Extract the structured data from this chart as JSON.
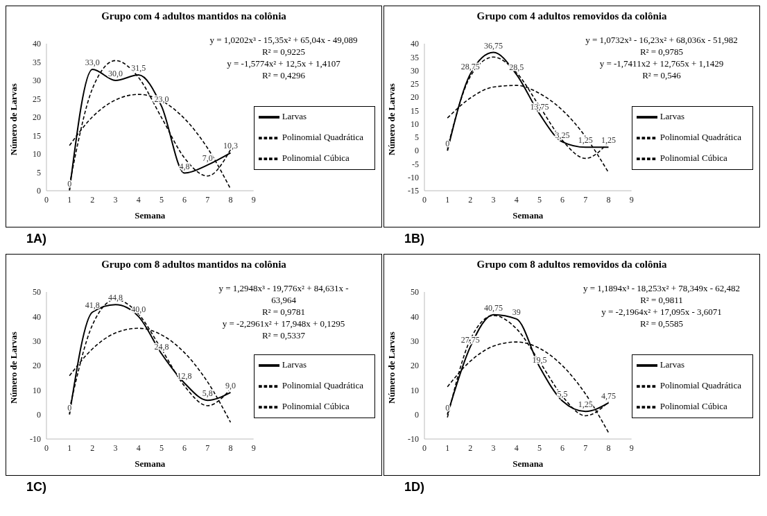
{
  "chart_data": [
    {
      "type": "line",
      "title": "Grupo com 4 adultos mantidos na colônia",
      "xlabel": "Semana",
      "ylabel": "Número de Larvas",
      "x": [
        1,
        2,
        3,
        4,
        5,
        6,
        7,
        8
      ],
      "xlim": [
        0,
        9
      ],
      "xticks": [
        0,
        1,
        2,
        3,
        4,
        5,
        6,
        7,
        8,
        9
      ],
      "ylim": [
        0,
        40
      ],
      "yticks": [
        0,
        5,
        10,
        15,
        20,
        25,
        30,
        35,
        40
      ],
      "legend": "right",
      "grid": false,
      "marker": "none",
      "series": [
        {
          "name": "Larvas",
          "color": "#000000",
          "line_style": "solid",
          "values": [
            0,
            33.0,
            30.0,
            31.5,
            23.0,
            4.8,
            7.0,
            10.3
          ],
          "value_labels": [
            "0",
            "33,0",
            "30,0",
            "31,5",
            "23,0",
            "4,8",
            "7,0",
            "10,3"
          ]
        },
        {
          "name": "Polinomial Quadrática",
          "color": "#000000",
          "line_style": "dashed",
          "values": [
            12.3,
            20.1,
            24.7,
            26.2,
            24.5,
            19.6,
            11.6,
            0.5
          ]
        },
        {
          "name": "Polinomial Cúbica",
          "color": "#000000",
          "line_style": "dashed",
          "values": [
            1.6,
            27.8,
            35.4,
            30.8,
            19.9,
            8.9,
            4.0,
            11.2
          ]
        }
      ],
      "annotations": [
        "y = 1,0202x³  - 15,35x² + 65,04x  - 49,089",
        "R² = 0,9225",
        "y = -1,5774x² + 12,5x + 1,4107",
        "R² = 0,4296",
        "1A)"
      ]
    },
    {
      "type": "line",
      "title": "Grupo com 4 adultos removidos da colônia",
      "xlabel": "Semana",
      "ylabel": "Número de Larvas",
      "x": [
        1,
        2,
        3,
        4,
        5,
        6,
        7,
        8
      ],
      "xlim": [
        0,
        9
      ],
      "xticks": [
        0,
        1,
        2,
        3,
        4,
        5,
        6,
        7,
        8,
        9
      ],
      "ylim": [
        -15,
        40
      ],
      "yticks": [
        -15,
        -10,
        -5,
        0,
        5,
        10,
        15,
        20,
        25,
        30,
        35,
        40
      ],
      "legend": "right",
      "grid": false,
      "marker": "none",
      "series": [
        {
          "name": "Larvas",
          "color": "#000000",
          "line_style": "solid",
          "values": [
            0,
            28.75,
            36.75,
            28.5,
            13.75,
            3.25,
            1.25,
            1.25
          ],
          "value_labels": [
            "0",
            "28,75",
            "36,75",
            "28,5",
            "13,75",
            "3,25",
            "1,25",
            "1,25"
          ]
        },
        {
          "name": "Polinomial Quadrática",
          "color": "#000000",
          "line_style": "dashed",
          "values": [
            12.2,
            19.7,
            23.8,
            24.4,
            21.4,
            15.1,
            5.2,
            -8.2
          ]
        },
        {
          "name": "Polinomial Cúbica",
          "color": "#000000",
          "line_style": "dashed",
          "values": [
            0.9,
            27.8,
            35.0,
            29.2,
            16.6,
            3.8,
            -2.9,
            3.1
          ]
        }
      ],
      "annotations": [
        "y = 1,0732x³  - 16,23x² + 68,036x - 51,982",
        "R² = 0,9785",
        "y = -1,7411x2 + 12,765x + 1,1429",
        "R² = 0,546",
        "1B)"
      ]
    },
    {
      "type": "line",
      "title": "Grupo com 8 adultos mantidos na colônia",
      "xlabel": "Semana",
      "ylabel": "Número de Larvas",
      "x": [
        1,
        2,
        3,
        4,
        5,
        6,
        7,
        8
      ],
      "xlim": [
        0,
        9
      ],
      "xticks": [
        0,
        1,
        2,
        3,
        4,
        5,
        6,
        7,
        8,
        9
      ],
      "ylim": [
        -10,
        50
      ],
      "yticks": [
        -10,
        0,
        10,
        20,
        30,
        40,
        50
      ],
      "legend": "right",
      "grid": false,
      "marker": "none",
      "series": [
        {
          "name": "Larvas",
          "color": "#000000",
          "line_style": "solid",
          "values": [
            0,
            41.8,
            44.8,
            40.0,
            24.8,
            12.8,
            5.8,
            9.0
          ],
          "value_labels": [
            "0",
            "41,8",
            "44,8",
            "40,0",
            "24,8",
            "12,8",
            "5,8",
            "9,0"
          ]
        },
        {
          "name": "Polinomial Quadrática",
          "color": "#000000",
          "line_style": "dashed",
          "values": [
            15.8,
            26.8,
            33.3,
            35.2,
            32.5,
            25.2,
            13.3,
            -3.2
          ]
        },
        {
          "name": "Polinomial Cúbica",
          "color": "#000000",
          "line_style": "dashed",
          "values": [
            2.2,
            36.6,
            46.9,
            41.0,
            26.6,
            11.6,
            3.6,
            10.4
          ]
        }
      ],
      "annotations": [
        "y = 1,2948x³  - 19,776x² + 84,631x -",
        "63,964",
        "R² = 0,9781",
        "y = -2,2961x² + 17,948x + 0,1295",
        "R² = 0,5337",
        "1C)"
      ]
    },
    {
      "type": "line",
      "title": "Grupo com 8 adultos removidos da colônia",
      "xlabel": "Semana",
      "ylabel": "Número de Larvas",
      "x": [
        1,
        2,
        3,
        4,
        5,
        6,
        7,
        8
      ],
      "xlim": [
        0,
        9
      ],
      "xticks": [
        0,
        1,
        2,
        3,
        4,
        5,
        6,
        7,
        8,
        9
      ],
      "ylim": [
        -10,
        50
      ],
      "yticks": [
        -10,
        0,
        10,
        20,
        30,
        40,
        50
      ],
      "legend": "right",
      "grid": false,
      "marker": "none",
      "series": [
        {
          "name": "Larvas",
          "color": "#000000",
          "line_style": "solid",
          "values": [
            0,
            27.75,
            40.75,
            39,
            19.5,
            5.5,
            1.25,
            4.75
          ],
          "value_labels": [
            "0",
            "27,75",
            "40,75",
            "39",
            "19,5",
            "5,5",
            "1,25",
            "4,75"
          ]
        },
        {
          "name": "Polinomial Quadrática",
          "color": "#000000",
          "line_style": "dashed",
          "values": [
            11.3,
            21.8,
            27.9,
            29.6,
            27.0,
            19.9,
            8.4,
            -7.4
          ]
        },
        {
          "name": "Polinomial Cúbica",
          "color": "#000000",
          "line_style": "dashed",
          "values": [
            -1.2,
            30.7,
            40.4,
            35.0,
            21.6,
            7.4,
            -0.5,
            5.1
          ]
        }
      ],
      "annotations": [
        "y = 1,1894x³  - 18,253x² + 78,349x - 62,482",
        "R² = 0,9811",
        "y = -2,1964x² + 17,095x - 3,6071",
        "R² = 0,5585",
        "1D)"
      ]
    }
  ]
}
